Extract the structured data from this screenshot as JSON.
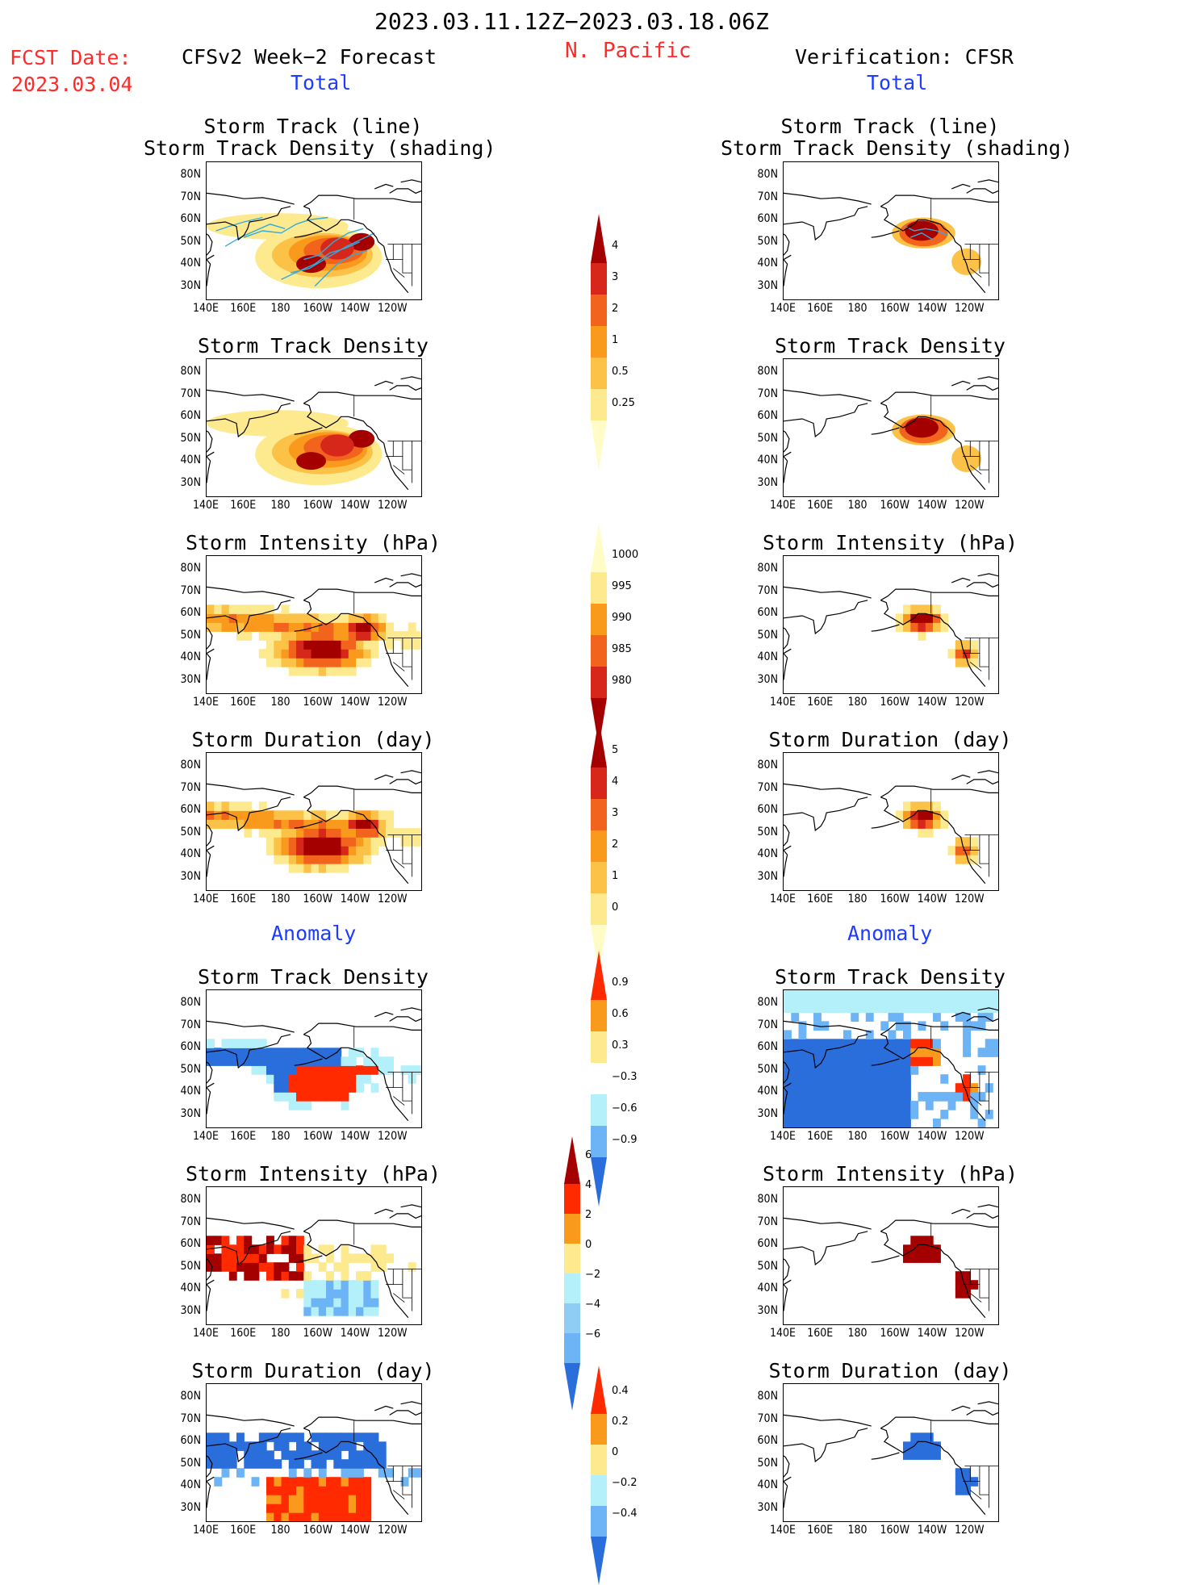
{
  "header": {
    "date_range": "2023.03.11.12Z−2023.03.18.06Z",
    "region": "N. Pacific",
    "fcst_label": "FCST Date:",
    "fcst_date": "2023.03.04",
    "left_title": "CFSv2 Week−2 Forecast",
    "right_title": "Verification: CFSR",
    "total_label": "Total",
    "anomaly_label": "Anomaly"
  },
  "panel_titles": {
    "track_line": "Storm Track (line)",
    "track_shading": "Storm Track Density (shading)",
    "density": "Storm Track Density",
    "intensity": "Storm Intensity (hPa)",
    "duration": "Storm Duration (day)"
  },
  "axes": {
    "lat_labels": [
      "80N",
      "70N",
      "60N",
      "50N",
      "40N",
      "30N"
    ],
    "lon_labels": [
      "140E",
      "160E",
      "180",
      "160W",
      "140W",
      "120W"
    ]
  },
  "colorbars": {
    "density": {
      "labels": [
        "4",
        "3",
        "2",
        "1",
        "0.5",
        "0.25"
      ],
      "colors": [
        "#a50000",
        "#d7261a",
        "#f2641d",
        "#f99a1c",
        "#fbc247",
        "#fde98e",
        "#fffcc8"
      ]
    },
    "intensity": {
      "labels": [
        "1000",
        "995",
        "990",
        "985",
        "980"
      ],
      "colors": [
        "#fffcc8",
        "#fde98e",
        "#f99a1c",
        "#f2641d",
        "#d7261a",
        "#a50000"
      ]
    },
    "duration": {
      "labels": [
        "5",
        "4",
        "3",
        "2",
        "1",
        "0"
      ],
      "colors": [
        "#a50000",
        "#d7261a",
        "#f2641d",
        "#f99a1c",
        "#fbc247",
        "#fde98e",
        "#fffcc8"
      ]
    },
    "anom_density": {
      "labels": [
        "0.9",
        "0.6",
        "0.3",
        "−0.3",
        "−0.6",
        "−0.9"
      ]
    },
    "anom_intensity": {
      "labels": [
        "6",
        "4",
        "2",
        "0",
        "−2",
        "−4",
        "−6"
      ]
    },
    "anom_duration": {
      "labels": [
        "0.4",
        "0.2",
        "0",
        "−0.2",
        "−0.4"
      ]
    },
    "anom_colors": [
      "#ff2a00",
      "#f99a1c",
      "#fde98e",
      "#ffffff",
      "#b4f0fa",
      "#6cb4f5",
      "#2a6edc",
      "#0a3cc8"
    ]
  },
  "palette": {
    "track_line": "#33aadd",
    "land_outline": "#000000",
    "header_red": "#ff2a2a",
    "header_blue": "#1f3cff"
  }
}
